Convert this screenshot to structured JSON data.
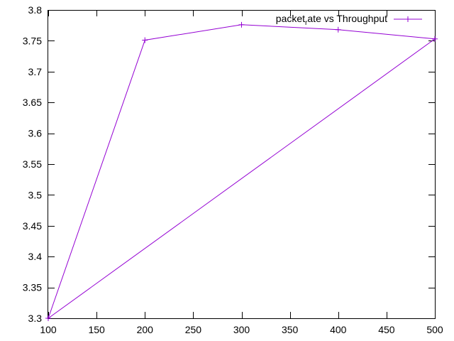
{
  "chart_data": {
    "type": "line",
    "title": "",
    "xlabel": "",
    "ylabel": "",
    "xlim": [
      100,
      500
    ],
    "ylim": [
      3.3,
      3.8
    ],
    "grid": false,
    "legend_position": "top-right",
    "x_ticks": [
      100,
      150,
      200,
      250,
      300,
      350,
      400,
      450,
      500
    ],
    "y_ticks": [
      3.3,
      3.35,
      3.4,
      3.45,
      3.5,
      3.55,
      3.6,
      3.65,
      3.7,
      3.75,
      3.8
    ],
    "series": [
      {
        "name": "packet_rate vs Throughput",
        "name_main": "packet",
        "name_sub": "r",
        "name_rest": "ate vs Throughput",
        "color": "#9400d3",
        "marker": "plus",
        "x": [
          100,
          200,
          300,
          400,
          500,
          100
        ],
        "y": [
          3.3,
          3.751,
          3.776,
          3.768,
          3.753,
          3.3
        ]
      }
    ]
  }
}
